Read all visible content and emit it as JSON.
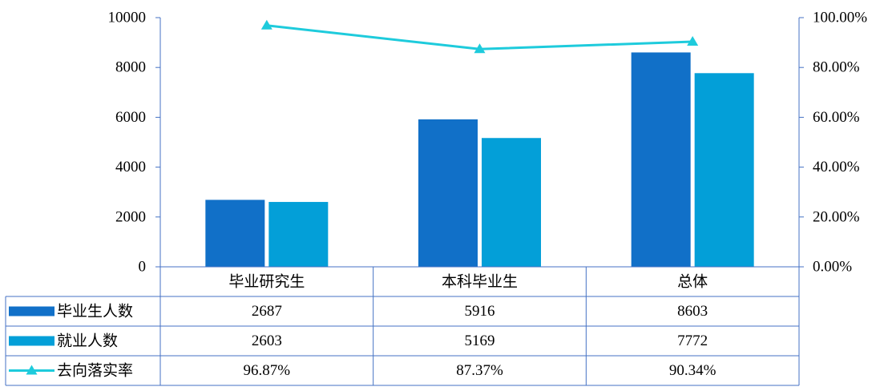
{
  "chart_data": {
    "type": "bar",
    "categories": [
      "毕业研究生",
      "本科毕业生",
      "总体"
    ],
    "series": [
      {
        "name": "毕业生人数",
        "type": "bar",
        "axis": "left",
        "color": "#1170C8",
        "values": [
          2687,
          5916,
          8603
        ],
        "labels": [
          "2687",
          "5916",
          "8603"
        ]
      },
      {
        "name": "就业人数",
        "type": "bar",
        "axis": "left",
        "color": "#039FD8",
        "values": [
          2603,
          5169,
          7772
        ],
        "labels": [
          "2603",
          "5169",
          "7772"
        ]
      },
      {
        "name": "去向落实率",
        "type": "line",
        "axis": "right",
        "color": "#1ECBDC",
        "values": [
          96.87,
          87.37,
          90.34
        ],
        "labels": [
          "96.87%",
          "87.37%",
          "90.34%"
        ]
      }
    ],
    "y_left": {
      "min": 0,
      "max": 10000,
      "ticks": [
        "0",
        "2000",
        "4000",
        "6000",
        "8000",
        "10000"
      ]
    },
    "y_right": {
      "min": 0,
      "max": 100,
      "ticks": [
        "0.00%",
        "20.00%",
        "40.00%",
        "60.00%",
        "80.00%",
        "100.00%"
      ]
    },
    "data_table": true,
    "grid": false
  }
}
